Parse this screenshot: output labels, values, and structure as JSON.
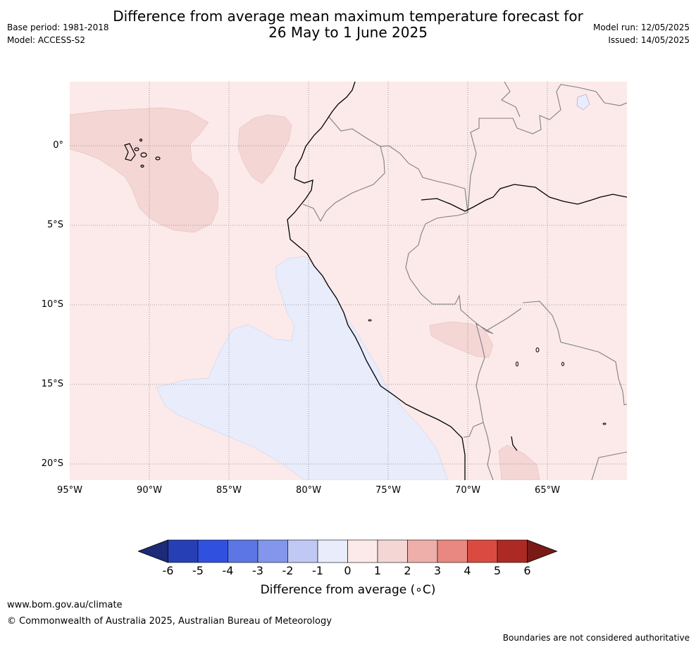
{
  "header": {
    "title_line1": "Difference from average mean maximum temperature forecast for",
    "title_line2": "26 May to 1 June 2025",
    "base_period": "Base period: 1981-2018",
    "model": "Model: ACCESS-S2",
    "model_run": "Model run: 12/05/2025",
    "issued": "Issued: 14/05/2025"
  },
  "map": {
    "lat_labels": [
      "0°",
      "5°S",
      "10°S",
      "15°S",
      "20°S"
    ],
    "lon_labels": [
      "95°W",
      "90°W",
      "85°W",
      "80°W",
      "75°W",
      "70°W",
      "65°W"
    ],
    "background_color": "#fbeae9",
    "warm_patch_color": "#f4d6d4",
    "cool_patch_color": "#e8ecfb",
    "coast_color": "#000000",
    "border_color": "#808080"
  },
  "colorbar": {
    "ticks": [
      "-6",
      "-5",
      "-4",
      "-3",
      "-2",
      "-1",
      "0",
      "1",
      "2",
      "3",
      "4",
      "5",
      "6"
    ],
    "colors": [
      "#1d2a78",
      "#263fb5",
      "#3050e0",
      "#5c76e6",
      "#8396ec",
      "#c0c8f4",
      "#e8ecfb",
      "#fbeae9",
      "#f4d6d4",
      "#eeaeaa",
      "#e88880",
      "#da4a40",
      "#ad2a24",
      "#7a1a16"
    ],
    "label": "Difference from average (∘C)"
  },
  "footer": {
    "website": "www.bom.gov.au/climate",
    "copyright": "© Commonwealth of Australia 2025, Australian Bureau of Meteorology",
    "disclaimer": "Boundaries are not considered authoritative"
  }
}
